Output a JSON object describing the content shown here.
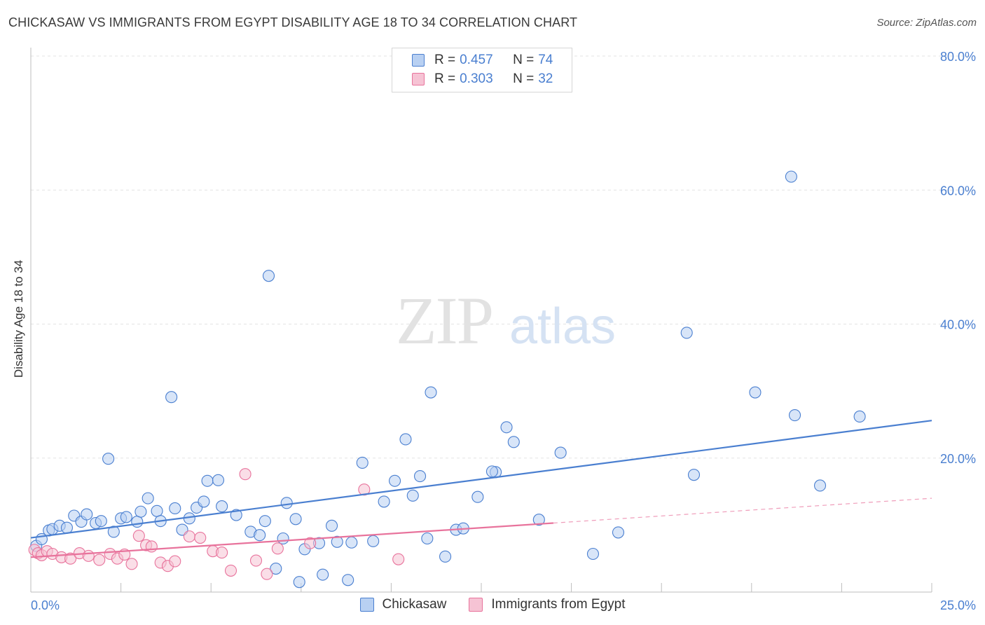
{
  "header": {
    "title": "CHICKASAW VS IMMIGRANTS FROM EGYPT DISABILITY AGE 18 TO 34 CORRELATION CHART",
    "source": "Source: ZipAtlas.com"
  },
  "watermark": {
    "zip": "ZIP",
    "atlas": "atlas"
  },
  "legend": {
    "rows": [
      {
        "r_label": "R =",
        "r_value": "0.457",
        "n_label": "N =",
        "n_value": "74"
      },
      {
        "r_label": "R =",
        "r_value": "0.303",
        "n_label": "N =",
        "n_value": "32"
      }
    ]
  },
  "chart_data": {
    "type": "scatter",
    "title": "CHICKASAW VS IMMIGRANTS FROM EGYPT DISABILITY AGE 18 TO 34 CORRELATION CHART",
    "xlabel": "",
    "ylabel": "Disability Age 18 to 34",
    "xlim": [
      0,
      25
    ],
    "ylim": [
      0,
      80
    ],
    "x_tick_labels": [
      "0.0%",
      "25.0%"
    ],
    "y_tick_values": [
      20,
      40,
      60,
      80
    ],
    "y_tick_labels": [
      "20.0%",
      "40.0%",
      "60.0%",
      "80.0%"
    ],
    "grid": true,
    "legend_position": "top-center",
    "series": [
      {
        "name": "Chickasaw",
        "color": "#4a7fd0",
        "fill": "#b8d0f2",
        "trend": {
          "x": [
            0,
            25
          ],
          "y": [
            8.1,
            25.6
          ],
          "dashed_from": null
        },
        "points": [
          [
            0.15,
            6.9
          ],
          [
            0.3,
            7.9
          ],
          [
            0.5,
            9.2
          ],
          [
            0.6,
            9.4
          ],
          [
            0.8,
            9.9
          ],
          [
            1.0,
            9.6
          ],
          [
            1.2,
            11.4
          ],
          [
            1.4,
            10.5
          ],
          [
            1.55,
            11.6
          ],
          [
            1.8,
            10.3
          ],
          [
            1.95,
            10.6
          ],
          [
            2.15,
            19.9
          ],
          [
            2.3,
            9.0
          ],
          [
            2.5,
            11.0
          ],
          [
            2.65,
            11.2
          ],
          [
            2.95,
            10.5
          ],
          [
            3.05,
            12.0
          ],
          [
            3.25,
            14.0
          ],
          [
            3.5,
            12.1
          ],
          [
            3.6,
            10.6
          ],
          [
            3.9,
            29.1
          ],
          [
            4.0,
            12.5
          ],
          [
            4.2,
            9.3
          ],
          [
            4.4,
            11.0
          ],
          [
            4.6,
            12.6
          ],
          [
            4.8,
            13.5
          ],
          [
            4.9,
            16.6
          ],
          [
            5.2,
            16.7
          ],
          [
            5.3,
            12.8
          ],
          [
            5.7,
            11.5
          ],
          [
            6.1,
            9.0
          ],
          [
            6.35,
            8.5
          ],
          [
            6.5,
            10.6
          ],
          [
            6.6,
            47.2
          ],
          [
            6.8,
            3.5
          ],
          [
            7.0,
            8.0
          ],
          [
            7.1,
            13.3
          ],
          [
            7.35,
            10.9
          ],
          [
            7.45,
            1.5
          ],
          [
            7.6,
            6.4
          ],
          [
            8.0,
            7.3
          ],
          [
            8.1,
            2.6
          ],
          [
            8.35,
            9.9
          ],
          [
            8.5,
            7.5
          ],
          [
            8.8,
            1.8
          ],
          [
            8.9,
            7.4
          ],
          [
            9.2,
            19.3
          ],
          [
            9.5,
            7.6
          ],
          [
            9.8,
            13.5
          ],
          [
            10.1,
            16.6
          ],
          [
            10.4,
            22.8
          ],
          [
            10.6,
            14.4
          ],
          [
            10.8,
            17.3
          ],
          [
            11.0,
            8.0
          ],
          [
            11.1,
            29.8
          ],
          [
            11.5,
            5.3
          ],
          [
            11.8,
            9.3
          ],
          [
            12.0,
            9.5
          ],
          [
            12.4,
            14.2
          ],
          [
            12.9,
            17.9
          ],
          [
            13.2,
            24.6
          ],
          [
            13.4,
            22.4
          ],
          [
            14.1,
            10.8
          ],
          [
            14.7,
            20.8
          ],
          [
            15.6,
            5.7
          ],
          [
            16.3,
            8.9
          ],
          [
            18.2,
            38.7
          ],
          [
            18.4,
            17.5
          ],
          [
            20.1,
            29.8
          ],
          [
            21.1,
            62.0
          ],
          [
            21.2,
            26.4
          ],
          [
            21.9,
            15.9
          ],
          [
            23.0,
            26.2
          ],
          [
            12.8,
            18.0
          ]
        ]
      },
      {
        "name": "Immigrants from Egypt",
        "color": "#e8739c",
        "fill": "#f6c3d4",
        "trend": {
          "x": [
            0,
            25
          ],
          "y": [
            5.2,
            14.0
          ],
          "dashed_from": 14.5
        },
        "points": [
          [
            0.1,
            6.3
          ],
          [
            0.2,
            5.8
          ],
          [
            0.3,
            5.5
          ],
          [
            0.45,
            6.1
          ],
          [
            0.6,
            5.7
          ],
          [
            0.85,
            5.2
          ],
          [
            1.1,
            5.0
          ],
          [
            1.35,
            5.8
          ],
          [
            1.6,
            5.4
          ],
          [
            1.9,
            4.8
          ],
          [
            2.2,
            5.7
          ],
          [
            2.4,
            5.0
          ],
          [
            2.6,
            5.6
          ],
          [
            2.8,
            4.2
          ],
          [
            3.0,
            8.4
          ],
          [
            3.2,
            7.0
          ],
          [
            3.35,
            6.8
          ],
          [
            3.6,
            4.4
          ],
          [
            3.8,
            3.9
          ],
          [
            4.0,
            4.6
          ],
          [
            4.4,
            8.3
          ],
          [
            4.7,
            8.1
          ],
          [
            5.05,
            6.1
          ],
          [
            5.3,
            5.9
          ],
          [
            5.55,
            3.2
          ],
          [
            5.95,
            17.6
          ],
          [
            6.25,
            4.7
          ],
          [
            6.55,
            2.7
          ],
          [
            6.85,
            6.5
          ],
          [
            7.75,
            7.3
          ],
          [
            9.25,
            15.3
          ],
          [
            10.2,
            4.9
          ]
        ]
      }
    ]
  }
}
